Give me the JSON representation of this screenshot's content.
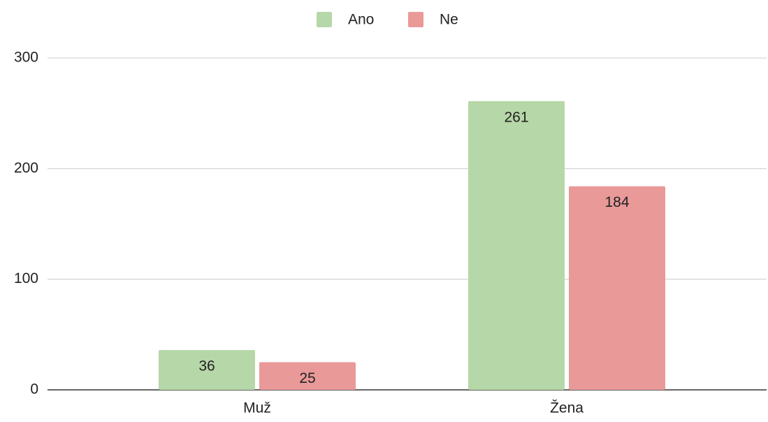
{
  "chart_data": {
    "type": "bar",
    "categories": [
      "Muž",
      "Žena"
    ],
    "series": [
      {
        "name": "Ano",
        "color": "#b6d7a8",
        "values": [
          36,
          261
        ]
      },
      {
        "name": "Ne",
        "color": "#ea9999",
        "values": [
          25,
          184
        ]
      }
    ],
    "ylim": [
      0,
      300
    ],
    "yticks": [
      0,
      100,
      200,
      300
    ],
    "grid": true,
    "legend": "top"
  }
}
